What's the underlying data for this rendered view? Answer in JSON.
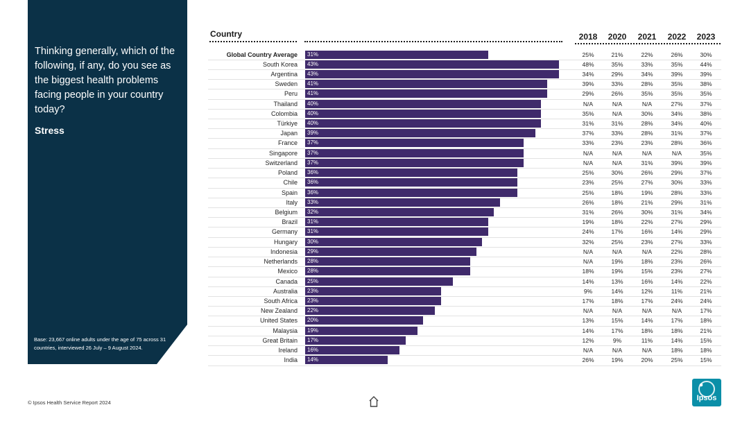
{
  "sidebar": {
    "question": "Thinking generally, which of the following, if any, do you see as the biggest health problems facing people in your country today?",
    "topic": "Stress",
    "base_note": "Base: 23,667 online adults under the age of 75 across 31 countries, interviewed 26 July – 9 August 2024."
  },
  "footer": {
    "copyright": "© Ipsos Health Service Report 2024",
    "home_icon": "home-icon"
  },
  "logo": {
    "text": "Ipsos"
  },
  "colors": {
    "bar": "#3f2a6b",
    "panel": "#0b3147",
    "logo": "#0b8fa8"
  },
  "chart_data": {
    "type": "bar",
    "orientation": "horizontal",
    "country_header": "Country",
    "year_headers": [
      "2018",
      "2020",
      "2021",
      "2022",
      "2023"
    ],
    "xlim": [
      0,
      100
    ],
    "rows": [
      {
        "country": "Global Country Average",
        "value": 31,
        "label": "31%",
        "years": [
          "25%",
          "21%",
          "22%",
          "26%",
          "30%"
        ]
      },
      {
        "country": "South Korea",
        "value": 43,
        "label": "43%",
        "years": [
          "48%",
          "35%",
          "33%",
          "35%",
          "44%"
        ]
      },
      {
        "country": "Argentina",
        "value": 43,
        "label": "43%",
        "years": [
          "34%",
          "29%",
          "34%",
          "39%",
          "39%"
        ]
      },
      {
        "country": "Sweden",
        "value": 41,
        "label": "41%",
        "years": [
          "39%",
          "33%",
          "28%",
          "35%",
          "38%"
        ]
      },
      {
        "country": "Peru",
        "value": 41,
        "label": "41%",
        "years": [
          "29%",
          "26%",
          "35%",
          "35%",
          "35%"
        ]
      },
      {
        "country": "Thailand",
        "value": 40,
        "label": "40%",
        "years": [
          "N/A",
          "N/A",
          "N/A",
          "27%",
          "37%"
        ]
      },
      {
        "country": "Colombia",
        "value": 40,
        "label": "40%",
        "years": [
          "35%",
          "N/A",
          "30%",
          "34%",
          "38%"
        ]
      },
      {
        "country": "Türkiye",
        "value": 40,
        "label": "40%",
        "years": [
          "31%",
          "31%",
          "28%",
          "34%",
          "40%"
        ]
      },
      {
        "country": "Japan",
        "value": 39,
        "label": "39%",
        "years": [
          "37%",
          "33%",
          "28%",
          "31%",
          "37%"
        ]
      },
      {
        "country": "France",
        "value": 37,
        "label": "37%",
        "years": [
          "33%",
          "23%",
          "23%",
          "28%",
          "36%"
        ]
      },
      {
        "country": "Singapore",
        "value": 37,
        "label": "37%",
        "years": [
          "N/A",
          "N/A",
          "N/A",
          "N/A",
          "35%"
        ]
      },
      {
        "country": "Switzerland",
        "value": 37,
        "label": "37%",
        "years": [
          "N/A",
          "N/A",
          "31%",
          "39%",
          "39%"
        ]
      },
      {
        "country": "Poland",
        "value": 36,
        "label": "36%",
        "years": [
          "25%",
          "30%",
          "26%",
          "29%",
          "37%"
        ]
      },
      {
        "country": "Chile",
        "value": 36,
        "label": "36%",
        "years": [
          "23%",
          "25%",
          "27%",
          "30%",
          "33%"
        ]
      },
      {
        "country": "Spain",
        "value": 36,
        "label": "36%",
        "years": [
          "25%",
          "18%",
          "19%",
          "28%",
          "33%"
        ]
      },
      {
        "country": "Italy",
        "value": 33,
        "label": "33%",
        "years": [
          "26%",
          "18%",
          "21%",
          "29%",
          "31%"
        ]
      },
      {
        "country": "Belgium",
        "value": 32,
        "label": "32%",
        "years": [
          "31%",
          "26%",
          "30%",
          "31%",
          "34%"
        ]
      },
      {
        "country": "Brazil",
        "value": 31,
        "label": "31%",
        "years": [
          "19%",
          "18%",
          "22%",
          "27%",
          "29%"
        ]
      },
      {
        "country": "Germany",
        "value": 31,
        "label": "31%",
        "years": [
          "24%",
          "17%",
          "16%",
          "14%",
          "29%"
        ]
      },
      {
        "country": "Hungary",
        "value": 30,
        "label": "30%",
        "years": [
          "32%",
          "25%",
          "23%",
          "27%",
          "33%"
        ]
      },
      {
        "country": "Indonesia",
        "value": 29,
        "label": "29%",
        "years": [
          "N/A",
          "N/A",
          "N/A",
          "22%",
          "28%"
        ]
      },
      {
        "country": "Netherlands",
        "value": 28,
        "label": "28%",
        "years": [
          "N/A",
          "19%",
          "18%",
          "23%",
          "26%"
        ]
      },
      {
        "country": "Mexico",
        "value": 28,
        "label": "28%",
        "years": [
          "18%",
          "19%",
          "15%",
          "23%",
          "27%"
        ]
      },
      {
        "country": "Canada",
        "value": 25,
        "label": "25%",
        "years": [
          "14%",
          "13%",
          "16%",
          "14%",
          "22%"
        ]
      },
      {
        "country": "Australia",
        "value": 23,
        "label": "23%",
        "years": [
          "9%",
          "14%",
          "12%",
          "11%",
          "21%"
        ]
      },
      {
        "country": "South Africa",
        "value": 23,
        "label": "23%",
        "years": [
          "17%",
          "18%",
          "17%",
          "24%",
          "24%"
        ]
      },
      {
        "country": "New Zealand",
        "value": 22,
        "label": "22%",
        "years": [
          "N/A",
          "N/A",
          "N/A",
          "N/A",
          "17%"
        ]
      },
      {
        "country": "United States",
        "value": 20,
        "label": "20%",
        "years": [
          "13%",
          "15%",
          "14%",
          "17%",
          "18%"
        ]
      },
      {
        "country": "Malaysia",
        "value": 19,
        "label": "19%",
        "years": [
          "14%",
          "17%",
          "18%",
          "18%",
          "21%"
        ]
      },
      {
        "country": "Great Britain",
        "value": 17,
        "label": "17%",
        "years": [
          "12%",
          "9%",
          "11%",
          "14%",
          "15%"
        ]
      },
      {
        "country": "Ireland",
        "value": 16,
        "label": "16%",
        "years": [
          "N/A",
          "N/A",
          "N/A",
          "18%",
          "18%"
        ]
      },
      {
        "country": "India",
        "value": 14,
        "label": "14%",
        "years": [
          "26%",
          "19%",
          "20%",
          "25%",
          "15%"
        ]
      }
    ]
  }
}
